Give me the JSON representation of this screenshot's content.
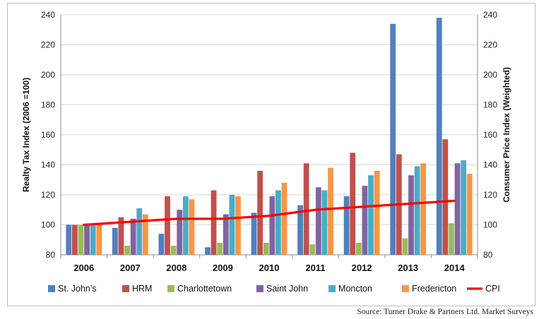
{
  "chart_data": {
    "type": "bar",
    "title": "",
    "xlabel": "",
    "ylabel": "Realty Tax Index (2006 =100)",
    "y2label": "Consumer Price Index (Weighted)",
    "ylim": [
      80,
      240
    ],
    "y2lim": [
      80,
      240
    ],
    "yticks": [
      "80",
      "100",
      "120",
      "140",
      "160",
      "180",
      "200",
      "220",
      "240"
    ],
    "y2ticks": [
      "80",
      "100",
      "120",
      "140",
      "160",
      "180",
      "200",
      "220",
      "240"
    ],
    "categories": [
      "2006",
      "2007",
      "2008",
      "2009",
      "2010",
      "2011",
      "2012",
      "2013",
      "2014"
    ],
    "series": [
      {
        "name": "St. John's",
        "color": "#4f81bd",
        "values": [
          100,
          98,
          94,
          85,
          108,
          113,
          119,
          234,
          238
        ]
      },
      {
        "name": "HRM",
        "color": "#c0504d",
        "values": [
          100,
          105,
          119,
          123,
          136,
          141,
          148,
          147,
          157
        ]
      },
      {
        "name": "Charlottetown",
        "color": "#9bbb59",
        "values": [
          100,
          86,
          86,
          88,
          88,
          87,
          88,
          91,
          101
        ]
      },
      {
        "name": "Saint John",
        "color": "#8064a2",
        "values": [
          100,
          104,
          110,
          107,
          119,
          125,
          126,
          133,
          141
        ]
      },
      {
        "name": "Moncton",
        "color": "#4bacc6",
        "values": [
          100,
          111,
          119,
          120,
          123,
          123,
          133,
          139,
          143
        ]
      },
      {
        "name": "Fredericton",
        "color": "#f79646",
        "values": [
          100,
          107,
          117,
          119,
          128,
          138,
          136,
          141,
          134
        ]
      }
    ],
    "line_series": {
      "name": "CPI",
      "color": "#ff0000",
      "values": [
        100,
        102,
        104,
        104,
        106,
        110,
        112,
        114,
        116
      ]
    },
    "grid": true,
    "legend_position": "bottom"
  },
  "source_note": "Source: Turner Drake & Partners Ltd. Market Surveys"
}
